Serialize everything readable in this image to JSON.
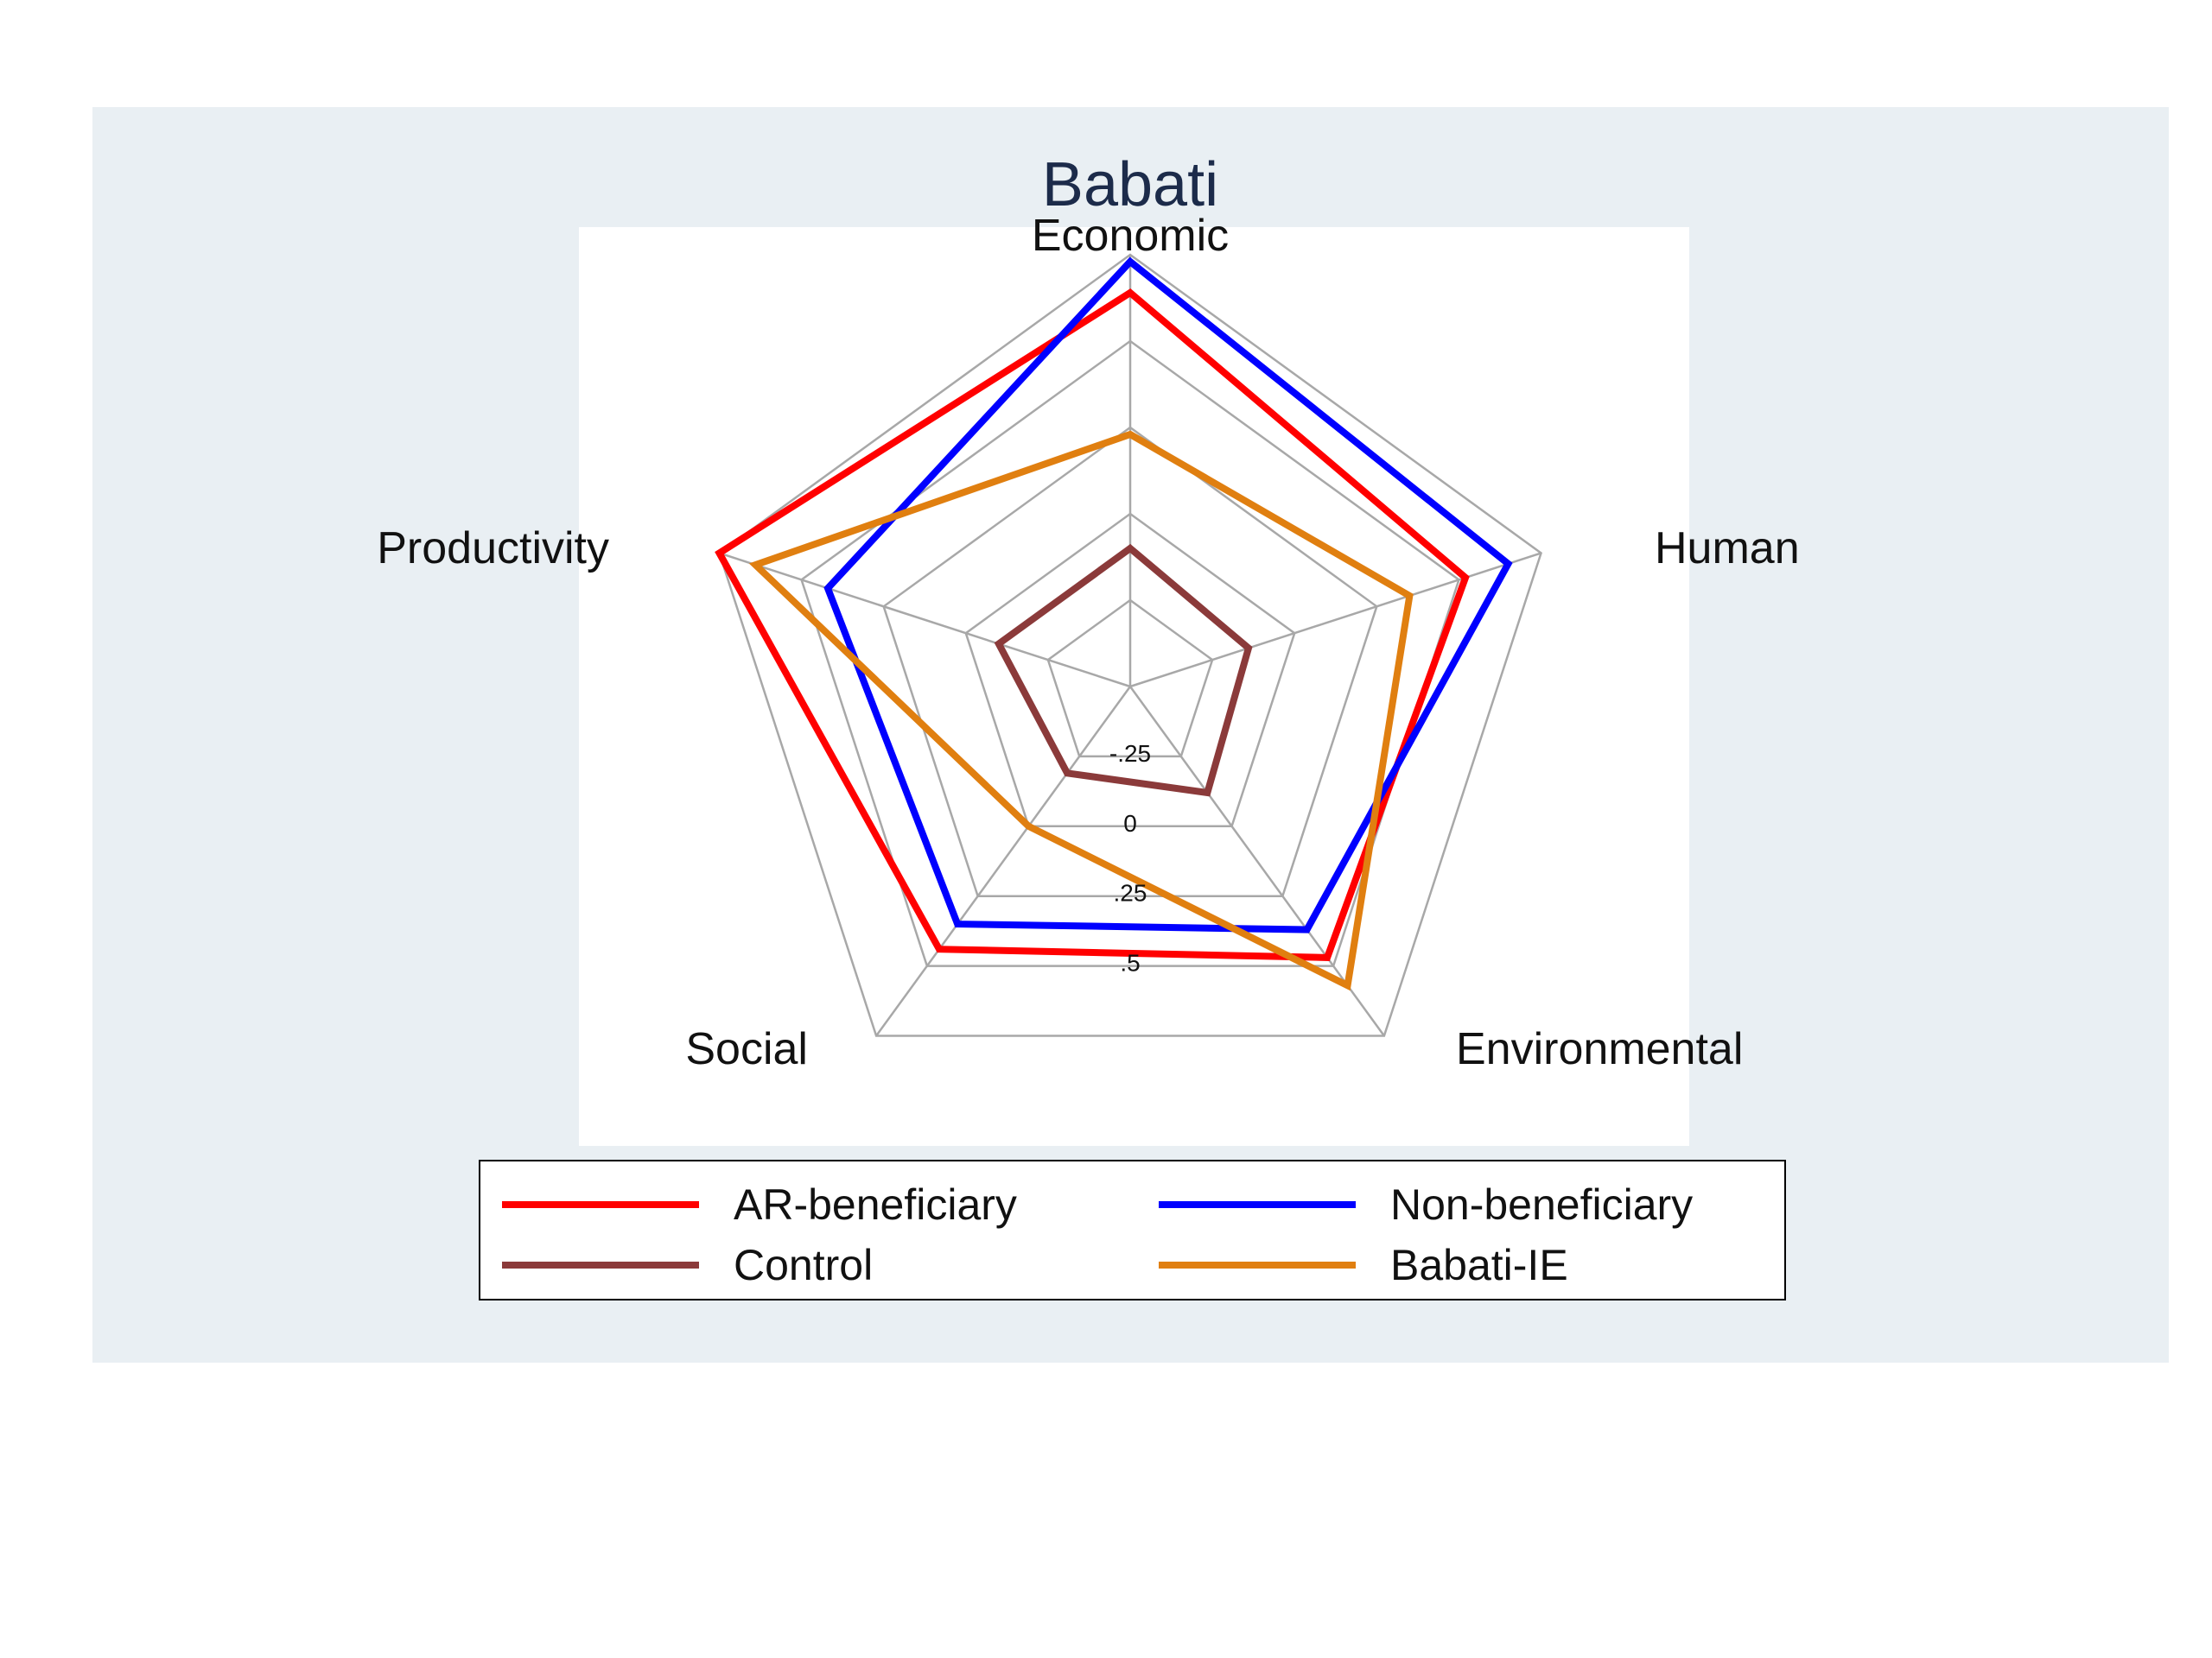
{
  "chart_data": {
    "type": "radar",
    "title": "Babati",
    "axes": [
      "Economic",
      "Human",
      "Environmental",
      "Social",
      "Productivity"
    ],
    "rlim": [
      -0.5,
      0.75
    ],
    "ticks": [
      -0.25,
      0,
      0.25,
      0.5
    ],
    "tick_labels": [
      "-.25",
      "0",
      ".25",
      ".5"
    ],
    "grid": true,
    "legend_position": "bottom",
    "series": [
      {
        "name": "AR-beneficiary",
        "color": "#ff0000",
        "values": [
          0.64,
          0.52,
          0.47,
          0.44,
          0.75
        ]
      },
      {
        "name": "Non-beneficiary",
        "color": "#0000ff",
        "values": [
          0.73,
          0.65,
          0.37,
          0.35,
          0.42
        ]
      },
      {
        "name": "Control",
        "color": "#8b3a3a",
        "values": [
          -0.1,
          -0.14,
          -0.12,
          -0.19,
          -0.1
        ]
      },
      {
        "name": "Babati-IE",
        "color": "#e07f10",
        "values": [
          0.23,
          0.35,
          0.57,
          0.0,
          0.64
        ]
      }
    ]
  }
}
